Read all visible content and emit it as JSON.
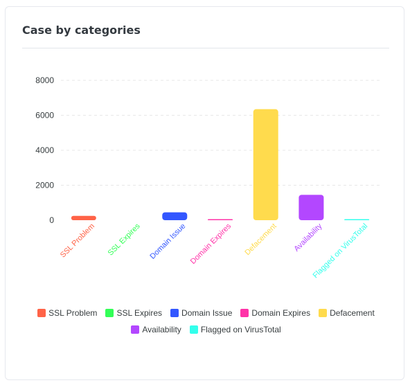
{
  "card": {
    "title": "Case by categories"
  },
  "colors": {
    "grid": "#e7e7e7",
    "axis_text": "#373d3f"
  },
  "chart_data": {
    "type": "bar",
    "title": "Case by categories",
    "categories": [
      "SSL Problem",
      "SSL Expires",
      "Domain Issue",
      "Domain Expires",
      "Defacement",
      "Availability",
      "Flagged on VirusTotal"
    ],
    "values": [
      250,
      0,
      450,
      30,
      6350,
      1450,
      20
    ],
    "colors": [
      "#ff6347",
      "#33ff57",
      "#3357ff",
      "#ff33a8",
      "#ffdb4d",
      "#b347ff",
      "#33ffec"
    ],
    "ylim": [
      0,
      8000
    ],
    "yticks": [
      0,
      2000,
      4000,
      6000,
      8000
    ],
    "xlabel": "",
    "ylabel": "",
    "grid": true,
    "legend_position": "bottom"
  },
  "legend": {
    "rows": [
      [
        "SSL Problem",
        "SSL Expires",
        "Domain Issue",
        "Domain Expires",
        "Defacement"
      ],
      [
        "Availability",
        "Flagged on VirusTotal"
      ]
    ]
  }
}
